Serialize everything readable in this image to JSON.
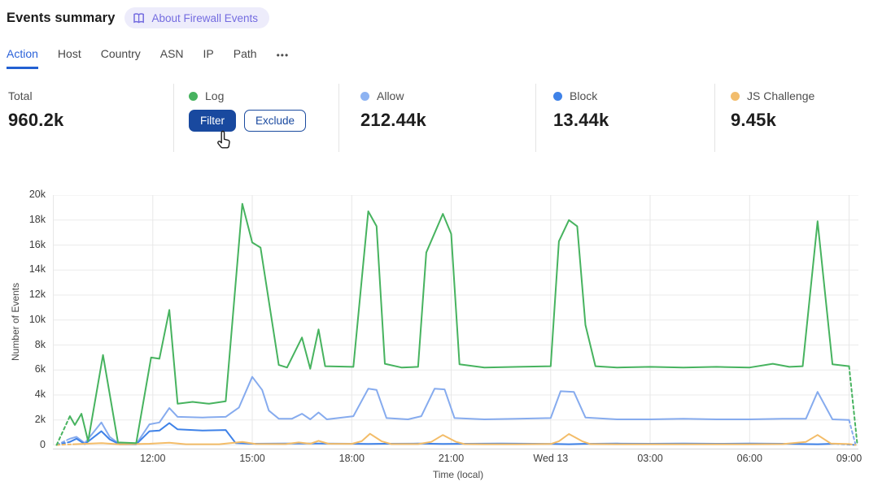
{
  "header": {
    "title": "Events summary",
    "badge_label": "About Firewall Events"
  },
  "tabs": {
    "items": [
      {
        "label": "Action",
        "active": true
      },
      {
        "label": "Host",
        "active": false
      },
      {
        "label": "Country",
        "active": false
      },
      {
        "label": "ASN",
        "active": false
      },
      {
        "label": "IP",
        "active": false
      },
      {
        "label": "Path",
        "active": false
      }
    ],
    "more_label": "•••"
  },
  "stats": {
    "total": {
      "label": "Total",
      "value": "960.2k"
    },
    "log": {
      "label": "Log",
      "dot_color": "#47b35f",
      "filter_label": "Filter",
      "exclude_label": "Exclude"
    },
    "allow": {
      "label": "Allow",
      "value": "212.44k",
      "dot_color": "#8db3f2"
    },
    "block": {
      "label": "Block",
      "value": "13.44k",
      "dot_color": "#3f82e8"
    },
    "js_challenge": {
      "label": "JS Challenge",
      "value": "9.45k",
      "dot_color": "#f2bd6d"
    }
  },
  "chart_data": {
    "type": "line",
    "xlabel": "Time (local)",
    "ylabel": "Number of Events",
    "x_unit": "hours since 09:00 previous day",
    "xlim": [
      0,
      24.3
    ],
    "ylim": [
      0,
      20000
    ],
    "grid": true,
    "yticks": [
      {
        "v": 0,
        "label": "0"
      },
      {
        "v": 2000,
        "label": "2k"
      },
      {
        "v": 4000,
        "label": "4k"
      },
      {
        "v": 6000,
        "label": "6k"
      },
      {
        "v": 8000,
        "label": "8k"
      },
      {
        "v": 10000,
        "label": "10k"
      },
      {
        "v": 12000,
        "label": "12k"
      },
      {
        "v": 14000,
        "label": "14k"
      },
      {
        "v": 16000,
        "label": "16k"
      },
      {
        "v": 18000,
        "label": "18k"
      },
      {
        "v": 20000,
        "label": "20k"
      }
    ],
    "xticks": [
      {
        "t": 3,
        "label": "12:00"
      },
      {
        "t": 6,
        "label": "15:00"
      },
      {
        "t": 9,
        "label": "18:00"
      },
      {
        "t": 12,
        "label": "21:00"
      },
      {
        "t": 15,
        "label": "Wed 13"
      },
      {
        "t": 18,
        "label": "03:00"
      },
      {
        "t": 21,
        "label": "06:00"
      },
      {
        "t": 24,
        "label": "09:00"
      }
    ],
    "series": [
      {
        "name": "Allow",
        "color": "#86abee",
        "points": [
          [
            0.1,
            0
          ],
          [
            0.5,
            500
          ],
          [
            0.7,
            650
          ],
          [
            0.95,
            150
          ],
          [
            1.45,
            1800
          ],
          [
            1.7,
            650
          ],
          [
            2.0,
            70
          ],
          [
            2.5,
            70
          ],
          [
            2.9,
            1650
          ],
          [
            3.2,
            1800
          ],
          [
            3.5,
            2950
          ],
          [
            3.75,
            2250
          ],
          [
            4.5,
            2200
          ],
          [
            5.2,
            2250
          ],
          [
            5.6,
            3000
          ],
          [
            6.0,
            5450
          ],
          [
            6.3,
            4400
          ],
          [
            6.5,
            2750
          ],
          [
            6.8,
            2100
          ],
          [
            7.2,
            2100
          ],
          [
            7.5,
            2500
          ],
          [
            7.75,
            2050
          ],
          [
            8.0,
            2600
          ],
          [
            8.25,
            2050
          ],
          [
            9.05,
            2300
          ],
          [
            9.5,
            4500
          ],
          [
            9.75,
            4400
          ],
          [
            10.05,
            2150
          ],
          [
            10.7,
            2050
          ],
          [
            11.1,
            2300
          ],
          [
            11.5,
            4500
          ],
          [
            11.8,
            4450
          ],
          [
            12.1,
            2150
          ],
          [
            13.0,
            2050
          ],
          [
            14.0,
            2100
          ],
          [
            15.0,
            2150
          ],
          [
            15.3,
            4300
          ],
          [
            15.7,
            4250
          ],
          [
            16.05,
            2200
          ],
          [
            17.0,
            2050
          ],
          [
            18.0,
            2050
          ],
          [
            19.0,
            2100
          ],
          [
            20.0,
            2050
          ],
          [
            21.0,
            2050
          ],
          [
            22.0,
            2100
          ],
          [
            22.7,
            2100
          ],
          [
            23.05,
            4250
          ],
          [
            23.5,
            2050
          ],
          [
            24.0,
            2000
          ],
          [
            24.2,
            0
          ]
        ]
      },
      {
        "name": "Block",
        "color": "#3f82e8",
        "points": [
          [
            0.1,
            0
          ],
          [
            0.5,
            250
          ],
          [
            0.7,
            500
          ],
          [
            0.95,
            70
          ],
          [
            1.45,
            1100
          ],
          [
            1.7,
            450
          ],
          [
            2.0,
            50
          ],
          [
            2.5,
            50
          ],
          [
            2.9,
            1100
          ],
          [
            3.2,
            1150
          ],
          [
            3.5,
            1750
          ],
          [
            3.75,
            1250
          ],
          [
            4.5,
            1150
          ],
          [
            5.2,
            1200
          ],
          [
            5.5,
            150
          ],
          [
            6.0,
            100
          ],
          [
            7.0,
            110
          ],
          [
            8.0,
            120
          ],
          [
            9.0,
            100
          ],
          [
            9.5,
            80
          ],
          [
            10.0,
            100
          ],
          [
            11.0,
            110
          ],
          [
            11.75,
            80
          ],
          [
            12.5,
            100
          ],
          [
            13.5,
            110
          ],
          [
            15.0,
            90
          ],
          [
            15.55,
            60
          ],
          [
            16.0,
            90
          ],
          [
            17.0,
            110
          ],
          [
            18.0,
            100
          ],
          [
            19.0,
            110
          ],
          [
            20.0,
            100
          ],
          [
            21.0,
            110
          ],
          [
            22.0,
            100
          ],
          [
            23.05,
            60
          ],
          [
            23.6,
            100
          ],
          [
            24.2,
            0
          ]
        ]
      },
      {
        "name": "JS Challenge",
        "color": "#f3bc68",
        "points": [
          [
            0.1,
            0
          ],
          [
            0.6,
            60
          ],
          [
            1.45,
            150
          ],
          [
            2.0,
            50
          ],
          [
            2.9,
            100
          ],
          [
            3.5,
            180
          ],
          [
            4.0,
            60
          ],
          [
            5.0,
            60
          ],
          [
            5.7,
            250
          ],
          [
            6.1,
            80
          ],
          [
            7.0,
            70
          ],
          [
            7.4,
            200
          ],
          [
            7.75,
            100
          ],
          [
            8.0,
            330
          ],
          [
            8.3,
            100
          ],
          [
            9.0,
            90
          ],
          [
            9.3,
            300
          ],
          [
            9.55,
            900
          ],
          [
            9.9,
            300
          ],
          [
            10.2,
            70
          ],
          [
            11.0,
            70
          ],
          [
            11.4,
            250
          ],
          [
            11.75,
            800
          ],
          [
            12.15,
            250
          ],
          [
            12.4,
            70
          ],
          [
            13.0,
            60
          ],
          [
            14.0,
            60
          ],
          [
            15.0,
            80
          ],
          [
            15.25,
            300
          ],
          [
            15.55,
            880
          ],
          [
            15.95,
            300
          ],
          [
            16.2,
            70
          ],
          [
            17.0,
            60
          ],
          [
            18.0,
            60
          ],
          [
            19.0,
            60
          ],
          [
            20.0,
            60
          ],
          [
            21.0,
            60
          ],
          [
            22.0,
            70
          ],
          [
            22.7,
            250
          ],
          [
            23.05,
            800
          ],
          [
            23.45,
            120
          ],
          [
            24.0,
            70
          ],
          [
            24.2,
            0
          ]
        ]
      },
      {
        "name": "Log",
        "color": "#47b35f",
        "points": [
          [
            0.1,
            0
          ],
          [
            0.5,
            2300
          ],
          [
            0.65,
            1600
          ],
          [
            0.85,
            2500
          ],
          [
            1.05,
            300
          ],
          [
            1.5,
            7200
          ],
          [
            1.95,
            200
          ],
          [
            2.5,
            150
          ],
          [
            2.95,
            7000
          ],
          [
            3.2,
            6900
          ],
          [
            3.5,
            10800
          ],
          [
            3.75,
            3300
          ],
          [
            4.2,
            3450
          ],
          [
            4.7,
            3300
          ],
          [
            5.2,
            3500
          ],
          [
            5.7,
            19300
          ],
          [
            6.0,
            16200
          ],
          [
            6.25,
            15800
          ],
          [
            6.8,
            6400
          ],
          [
            7.05,
            6200
          ],
          [
            7.5,
            8600
          ],
          [
            7.75,
            6100
          ],
          [
            8.0,
            9250
          ],
          [
            8.2,
            6300
          ],
          [
            9.05,
            6250
          ],
          [
            9.5,
            18700
          ],
          [
            9.75,
            17500
          ],
          [
            10.0,
            6500
          ],
          [
            10.5,
            6200
          ],
          [
            11.0,
            6250
          ],
          [
            11.25,
            15400
          ],
          [
            11.75,
            18500
          ],
          [
            12.0,
            16900
          ],
          [
            12.25,
            6450
          ],
          [
            13.0,
            6200
          ],
          [
            14.0,
            6250
          ],
          [
            15.0,
            6300
          ],
          [
            15.25,
            16300
          ],
          [
            15.55,
            18000
          ],
          [
            15.8,
            17500
          ],
          [
            16.05,
            9600
          ],
          [
            16.35,
            6300
          ],
          [
            17.0,
            6200
          ],
          [
            18.0,
            6250
          ],
          [
            19.0,
            6200
          ],
          [
            20.0,
            6250
          ],
          [
            21.0,
            6200
          ],
          [
            21.7,
            6500
          ],
          [
            22.2,
            6250
          ],
          [
            22.6,
            6300
          ],
          [
            23.05,
            17900
          ],
          [
            23.5,
            6450
          ],
          [
            24.0,
            6300
          ],
          [
            24.25,
            0
          ]
        ]
      }
    ]
  }
}
